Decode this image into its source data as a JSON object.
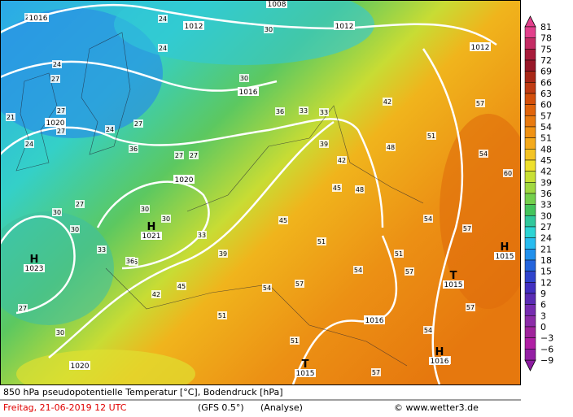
{
  "map": {
    "pressure_labels": [
      "1016",
      "1012",
      "1008",
      "1012",
      "1012",
      "1016",
      "1020",
      "1020",
      "1016",
      "1020"
    ],
    "pressure_systems": [
      {
        "symbol": "H",
        "value": "1023"
      },
      {
        "symbol": "H",
        "value": "1021"
      },
      {
        "symbol": "T",
        "value": "1015"
      },
      {
        "symbol": "H",
        "value": "1015"
      },
      {
        "symbol": "H",
        "value": "1016"
      },
      {
        "symbol": "T",
        "value": "1015"
      }
    ],
    "temperature_labels": [
      "21",
      "24",
      "24",
      "30",
      "27",
      "21",
      "24",
      "27",
      "27",
      "24",
      "27",
      "30",
      "30",
      "24",
      "27",
      "36",
      "27",
      "27",
      "30",
      "30",
      "33",
      "33",
      "33",
      "36",
      "39",
      "42",
      "45",
      "48",
      "51",
      "54",
      "57",
      "51",
      "48",
      "54",
      "60",
      "57",
      "51",
      "45",
      "42",
      "36",
      "39",
      "30",
      "33",
      "36",
      "42",
      "45",
      "51",
      "54",
      "57",
      "51",
      "54",
      "54",
      "57",
      "54",
      "57",
      "57",
      "27",
      "30"
    ]
  },
  "colorbar": {
    "labels": [
      "81",
      "78",
      "75",
      "72",
      "69",
      "66",
      "63",
      "60",
      "57",
      "54",
      "51",
      "48",
      "45",
      "42",
      "39",
      "36",
      "33",
      "30",
      "27",
      "24",
      "21",
      "18",
      "15",
      "12",
      "9",
      "6",
      "3",
      "0",
      "−3",
      "−6",
      "−9"
    ],
    "colors": [
      "#e2408c",
      "#c42c64",
      "#a81c3c",
      "#981828",
      "#a82818",
      "#c03c14",
      "#d4500c",
      "#e0640c",
      "#e87a10",
      "#f09214",
      "#f4aa1c",
      "#f4c424",
      "#eee02c",
      "#c8e034",
      "#a0d840",
      "#74d04c",
      "#44c45c",
      "#30c89c",
      "#2cd4d4",
      "#28bcf0",
      "#2090ec",
      "#2464dc",
      "#3044cc",
      "#4230c0",
      "#5a2cb4",
      "#762cb0",
      "#8c2ca8",
      "#a0249c",
      "#b020a4",
      "#9420a4"
    ]
  },
  "footer": {
    "title": "850 hPa pseudopotentielle Temperatur [°C], Bodendruck [hPa]",
    "date": "Freitag, 21-06-2019  12 UTC",
    "model": "(GFS 0.5°)",
    "run": "(Analyse)",
    "credit": "© www.wetter3.de"
  }
}
